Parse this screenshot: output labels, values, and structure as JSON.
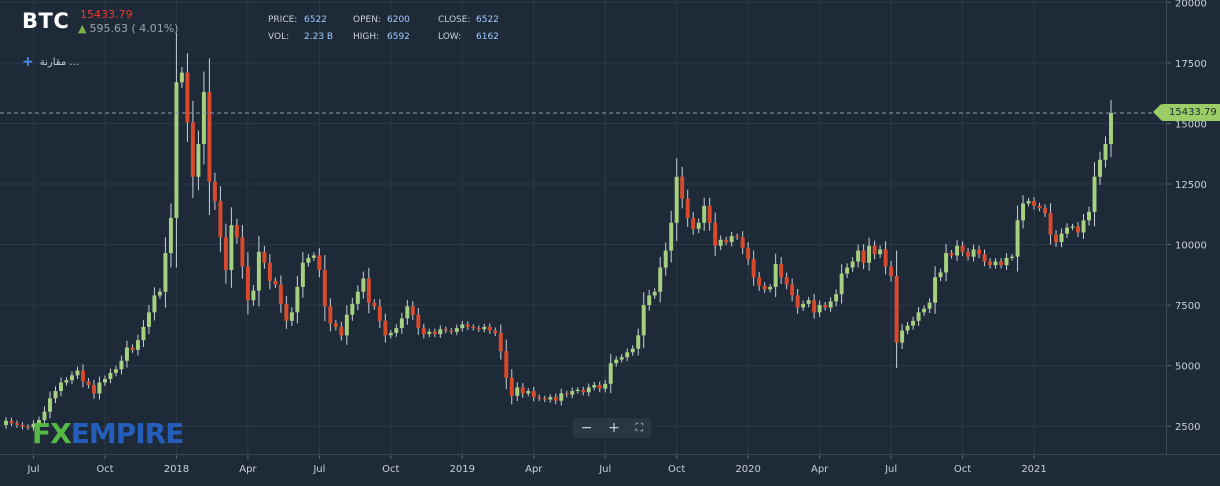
{
  "header": {
    "symbol": "BTC",
    "last_price": "15433.79",
    "change": "595.63 ( 4.01%)",
    "compare_label": "مقارنة ...",
    "stats": [
      {
        "key": "PRICE:",
        "value": "6522"
      },
      {
        "key": "VOL:",
        "value": "2.23 B"
      },
      {
        "key": "OPEN:",
        "value": "6200"
      },
      {
        "key": "HIGH:",
        "value": "6592"
      },
      {
        "key": "CLOSE:",
        "value": "6522"
      },
      {
        "key": "LOW:",
        "value": "6162"
      }
    ]
  },
  "logo": {
    "fx": "FX",
    "rest": "EMPIRE"
  },
  "toolbar": {
    "zoom_out": "−",
    "zoom_in": "+",
    "fullscreen": "⛶"
  },
  "price_tag": "15433.79",
  "colors": {
    "background": "#1e2a38",
    "up": "#a5d07f",
    "down": "#d84a2b",
    "grid": "#2b3846",
    "accent": "#4f8ff7"
  },
  "chart_data": {
    "type": "candlestick",
    "interval": "weekly",
    "x_ticks": [
      "Jul",
      "Oct",
      "2018",
      "Apr",
      "Jul",
      "Oct",
      "2019",
      "Apr",
      "Jul",
      "Oct",
      "2020",
      "Apr",
      "Jul",
      "Oct",
      "2021"
    ],
    "y_ticks": [
      2500,
      5000,
      7500,
      10000,
      12500,
      15000,
      17500,
      20000
    ],
    "ylim": [
      1350,
      20100
    ],
    "last_value": 15433.79,
    "grid": true,
    "close": [
      2720,
      2620,
      2550,
      2480,
      2450,
      2600,
      2750,
      3100,
      3650,
      3950,
      4300,
      4400,
      4600,
      4800,
      4350,
      4200,
      3850,
      4300,
      4450,
      4700,
      4850,
      5200,
      5750,
      5650,
      6050,
      6600,
      7200,
      7900,
      8050,
      9650,
      11100,
      16700,
      17100,
      15050,
      12800,
      14150,
      16300,
      12600,
      11800,
      10300,
      8950,
      10800,
      10300,
      9100,
      7700,
      8100,
      9700,
      9250,
      8500,
      8350,
      7550,
      6850,
      7200,
      8250,
      9250,
      9450,
      9550,
      8950,
      7450,
      6750,
      6600,
      6250,
      7100,
      7550,
      8050,
      8600,
      7600,
      7450,
      6850,
      6250,
      6350,
      6550,
      6950,
      7450,
      7100,
      6550,
      6300,
      6400,
      6300,
      6500,
      6450,
      6400,
      6550,
      6700,
      6600,
      6550,
      6500,
      6600,
      6450,
      6350,
      5600,
      4500,
      3750,
      4100,
      3850,
      3950,
      3700,
      3650,
      3600,
      3700,
      3550,
      3850,
      3800,
      3950,
      4000,
      3900,
      4100,
      4200,
      4050,
      4250,
      5100,
      5250,
      5350,
      5550,
      5700,
      6250,
      7500,
      7900,
      8050,
      9050,
      9750,
      10900,
      12800,
      11900,
      11100,
      10650,
      10900,
      11600,
      10900,
      9950,
      10200,
      10100,
      10350,
      10300,
      9850,
      9400,
      8650,
      8300,
      8150,
      8250,
      9200,
      8650,
      8350,
      7900,
      7400,
      7550,
      7700,
      7200,
      7500,
      7400,
      7650,
      7950,
      8800,
      9050,
      9300,
      9750,
      9250,
      9950,
      9600,
      9800,
      9100,
      8700,
      5950,
      6450,
      6650,
      6850,
      7200,
      7350,
      7600,
      8650,
      8850,
      9650,
      9550,
      9950,
      9700,
      9500,
      9800,
      9600,
      9300,
      9150,
      9300,
      9150,
      9450,
      9500,
      11000,
      11700,
      11800,
      11600,
      11500,
      11300,
      10400,
      10100,
      10450,
      10700,
      10750,
      10500,
      11000,
      11350,
      12800,
      13500,
      14150,
      15433.79
    ],
    "open": [
      2550,
      2720,
      2620,
      2550,
      2480,
      2450,
      2600,
      2750,
      3100,
      3650,
      3950,
      4300,
      4400,
      4600,
      4800,
      4350,
      4200,
      3850,
      4300,
      4450,
      4700,
      4850,
      5200,
      5750,
      5650,
      6050,
      6600,
      7200,
      7900,
      8050,
      9650,
      11100,
      16700,
      17100,
      15050,
      12800,
      14150,
      16300,
      12600,
      11800,
      10300,
      8950,
      10800,
      10300,
      9100,
      7700,
      8100,
      9700,
      9250,
      8500,
      8350,
      7550,
      6850,
      7200,
      8250,
      9250,
      9450,
      9550,
      8950,
      7450,
      6750,
      6600,
      6250,
      7100,
      7550,
      8050,
      8600,
      7600,
      7450,
      6850,
      6250,
      6350,
      6550,
      6950,
      7450,
      7100,
      6550,
      6300,
      6400,
      6300,
      6500,
      6450,
      6400,
      6550,
      6700,
      6600,
      6550,
      6500,
      6600,
      6450,
      6350,
      5600,
      4500,
      3750,
      4100,
      3850,
      3950,
      3700,
      3650,
      3600,
      3700,
      3550,
      3850,
      3800,
      3950,
      4000,
      3900,
      4100,
      4200,
      4050,
      4250,
      5100,
      5250,
      5350,
      5550,
      5700,
      6250,
      7500,
      7900,
      8050,
      9050,
      9750,
      10900,
      12800,
      11900,
      11100,
      10650,
      10900,
      11600,
      10900,
      9950,
      10200,
      10100,
      10350,
      10300,
      9850,
      9400,
      8650,
      8300,
      8150,
      8250,
      9200,
      8650,
      8350,
      7900,
      7400,
      7550,
      7700,
      7200,
      7500,
      7400,
      7650,
      7950,
      8800,
      9050,
      9300,
      9750,
      9250,
      9950,
      9600,
      9800,
      9100,
      8700,
      5950,
      6450,
      6650,
      6850,
      7200,
      7350,
      7600,
      8650,
      8850,
      9650,
      9550,
      9950,
      9700,
      9500,
      9800,
      9600,
      9300,
      9150,
      9300,
      9150,
      9450,
      9500,
      11000,
      11700,
      11800,
      11600,
      11500,
      11300,
      10400,
      10100,
      10450,
      10700,
      10750,
      10500,
      11000,
      11350,
      12800,
      13500,
      14150
    ]
  }
}
